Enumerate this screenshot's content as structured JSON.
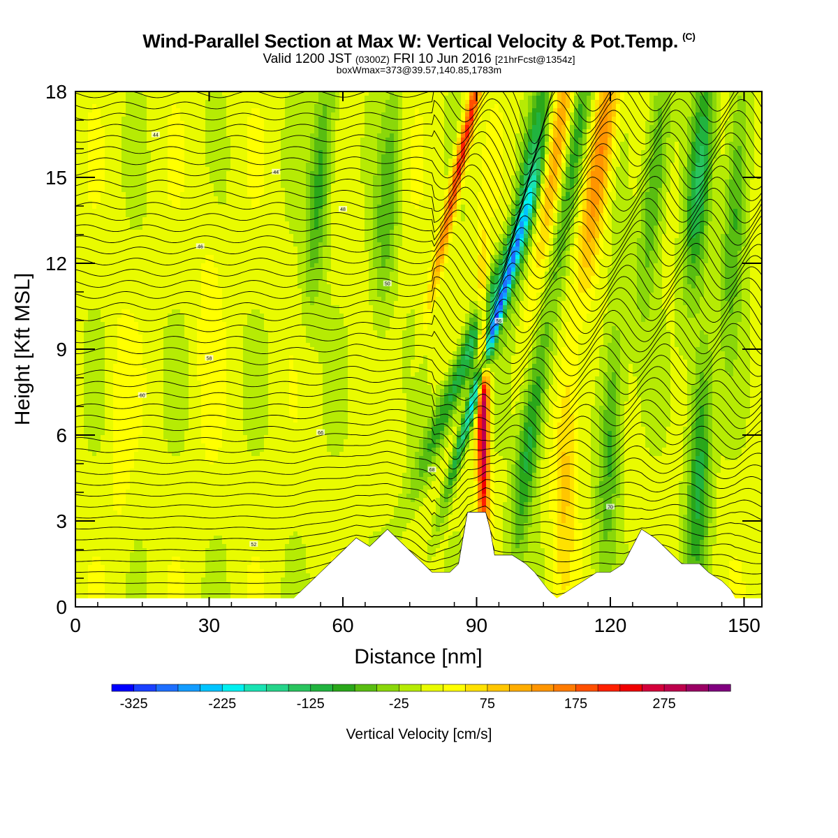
{
  "header": {
    "title": "Wind-Parallel Section at Max W: Vertical Velocity & Pot.Temp.",
    "copyright": "(C)",
    "valid_prefix": "Valid 1200 JST",
    "valid_utc": "(0300Z)",
    "valid_date": "FRI 10 Jun 2016",
    "forecast": "[21hrFcst@1354z]",
    "boxmax": "boxWmax=373@39.57,140.85,1783m"
  },
  "chart_data": {
    "type": "heatmap",
    "xlabel": "Distance [nm]",
    "ylabel": "Height [Kft MSL]",
    "xlim": [
      0,
      154
    ],
    "ylim": [
      0,
      18
    ],
    "x_ticks": [
      0,
      30,
      60,
      90,
      120,
      150
    ],
    "y_ticks": [
      0,
      3,
      6,
      9,
      12,
      15,
      18
    ],
    "colorbar": {
      "title": "Vertical Velocity [cm/s]",
      "min": -350,
      "max": 350,
      "step": 25,
      "tick_labels": [
        "-325",
        "-225",
        "-125",
        "-25",
        "75",
        "175",
        "275"
      ],
      "colors": [
        "#0000ff",
        "#1a40ff",
        "#1e6fff",
        "#139cff",
        "#00c4ff",
        "#00f0f0",
        "#19e3b3",
        "#25d48a",
        "#29c45e",
        "#21b33f",
        "#2aa71a",
        "#59bd11",
        "#8ad70a",
        "#b6eb04",
        "#e9fb00",
        "#ffff00",
        "#ffe100",
        "#ffc600",
        "#ffad00",
        "#ff9500",
        "#ff7b00",
        "#ff5000",
        "#ff2000",
        "#f00000",
        "#d4003a",
        "#bd004c",
        "#9a0064",
        "#80007f"
      ]
    },
    "terrain_kft": [
      [
        0,
        0.3
      ],
      [
        49,
        0.3
      ],
      [
        51,
        0.6
      ],
      [
        53,
        0.9
      ],
      [
        55,
        1.2
      ],
      [
        57,
        1.5
      ],
      [
        59,
        1.8
      ],
      [
        61,
        2.1
      ],
      [
        63,
        2.4
      ],
      [
        66,
        2.1
      ],
      [
        68,
        2.4
      ],
      [
        70,
        2.7
      ],
      [
        72,
        2.4
      ],
      [
        74,
        2.1
      ],
      [
        76,
        1.8
      ],
      [
        78,
        1.5
      ],
      [
        80,
        1.2
      ],
      [
        82,
        1.2
      ],
      [
        84,
        1.2
      ],
      [
        86,
        1.5
      ],
      [
        87,
        2.4
      ],
      [
        88,
        3.3
      ],
      [
        92,
        3.3
      ],
      [
        93,
        2.7
      ],
      [
        94,
        1.8
      ],
      [
        98,
        1.8
      ],
      [
        101,
        1.5
      ],
      [
        103,
        1.2
      ],
      [
        106,
        0.6
      ],
      [
        108,
        0.3
      ],
      [
        111,
        0.6
      ],
      [
        114,
        0.9
      ],
      [
        117,
        1.2
      ],
      [
        120,
        1.2
      ],
      [
        123,
        1.5
      ],
      [
        125,
        2.1
      ],
      [
        127,
        2.7
      ],
      [
        130,
        2.4
      ],
      [
        132,
        2.1
      ],
      [
        134,
        1.8
      ],
      [
        136,
        1.5
      ],
      [
        138,
        1.5
      ],
      [
        140,
        1.5
      ],
      [
        142,
        1.2
      ],
      [
        145,
        0.9
      ],
      [
        147,
        0.6
      ],
      [
        148,
        0.3
      ],
      [
        154,
        0.3
      ]
    ],
    "w_anomalies": [
      {
        "x": 88.5,
        "z": 9,
        "w": -150,
        "lean": 2.5
      },
      {
        "x": 92.5,
        "z": 9,
        "w": -275,
        "lean": 1.8
      },
      {
        "x": 91.5,
        "z": 6.5,
        "w": 300,
        "lean": 0
      },
      {
        "x": 87,
        "z": 16,
        "w": 225,
        "lean": 1.4
      },
      {
        "x": 102,
        "z": 15,
        "w": -125,
        "lean": 1.0
      },
      {
        "x": 108,
        "z": 16,
        "w": 125,
        "lean": 0.9
      },
      {
        "x": 112,
        "z": 16,
        "w": -125,
        "lean": 0.9
      },
      {
        "x": 118,
        "z": 16,
        "w": 150,
        "lean": 0.8
      },
      {
        "x": 130,
        "z": 15,
        "w": -100,
        "lean": 0.6
      },
      {
        "x": 140,
        "z": 15,
        "w": -125,
        "lean": 0.5
      },
      {
        "x": 148,
        "z": 14,
        "w": -100,
        "lean": 0.3
      },
      {
        "x": 70,
        "z": 14,
        "w": -75,
        "lean": 0.4
      },
      {
        "x": 55,
        "z": 15,
        "w": -100,
        "lean": 0.5
      },
      {
        "x": 102,
        "z": 6,
        "w": -125,
        "lean": 0.8
      },
      {
        "x": 110,
        "z": 5,
        "w": 75,
        "lean": 0.2
      },
      {
        "x": 120,
        "z": 6,
        "w": -100,
        "lean": 0.3
      },
      {
        "x": 140,
        "z": 5,
        "w": -125,
        "lean": 0.2
      },
      {
        "x": 30,
        "z": 10,
        "w": 25,
        "lean": 0
      },
      {
        "x": 10,
        "z": 6,
        "w": 25,
        "lean": 0
      }
    ],
    "theta_labels": [
      "44",
      "44",
      "48",
      "46",
      "50",
      "56",
      "58",
      "60",
      "66",
      "68",
      "70",
      "52"
    ]
  }
}
